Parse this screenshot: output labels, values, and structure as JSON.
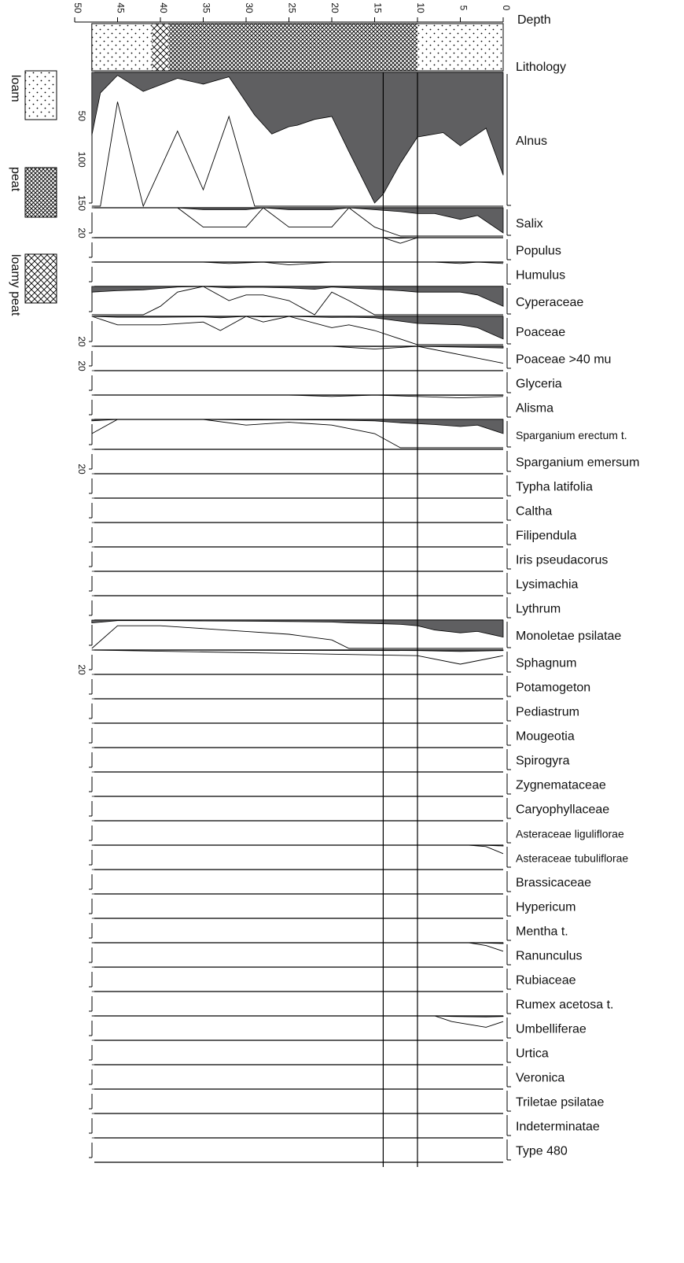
{
  "chart_data": {
    "type": "area",
    "x_axis": {
      "label": "Depth",
      "range": [
        0,
        50
      ],
      "ticks": [
        0,
        5,
        10,
        15,
        20,
        25,
        30,
        35,
        40,
        45,
        50
      ],
      "tick_labels": [
        "0",
        "5",
        "10",
        "15",
        "20",
        "25",
        "30",
        "35",
        "40",
        "45",
        "50"
      ]
    },
    "lithology": {
      "label": "Lithology",
      "units": [
        {
          "from": 0,
          "to": 10,
          "type": "loam"
        },
        {
          "from": 10,
          "to": 39,
          "type": "peat"
        },
        {
          "from": 39,
          "to": 41,
          "type": "loamy peat"
        },
        {
          "from": 41,
          "to": 48,
          "type": "loam"
        }
      ]
    },
    "legend": {
      "placement": "left",
      "items": [
        {
          "label": "loam",
          "pattern": "dots"
        },
        {
          "label": "peat",
          "pattern": "crosshatch-dense"
        },
        {
          "label": "loamy peat",
          "pattern": "crosshatch"
        }
      ]
    },
    "zone_boundaries": [
      10,
      14
    ],
    "exaggeration_factor": 10,
    "fill_color": "#5f5f61",
    "outline_color": "#000000",
    "panels": [
      {
        "name": "Alnus",
        "scale_labels": [
          "50",
          "100",
          "150"
        ],
        "depths": [
          0,
          2,
          5,
          7,
          10,
          12,
          14,
          15,
          18,
          20,
          22,
          24,
          25,
          27,
          29,
          32,
          35,
          38,
          42,
          45,
          47,
          48
        ],
        "values": [
          70,
          38,
          50,
          41,
          44,
          62,
          83,
          89,
          54,
          30,
          32,
          36,
          37,
          42,
          29,
          3,
          8,
          4,
          13,
          2,
          14,
          43
        ]
      },
      {
        "name": "Salix",
        "scale_labels": [
          "20"
        ],
        "depths": [
          0,
          3,
          5,
          8,
          10,
          12,
          15,
          18,
          20,
          22,
          25,
          28,
          30,
          32,
          35,
          38,
          41,
          43,
          45,
          48
        ],
        "values": [
          13,
          4,
          6,
          3,
          3,
          2,
          1,
          0,
          1,
          1,
          1,
          0,
          1,
          1,
          1,
          0,
          0,
          0,
          0,
          0
        ]
      },
      {
        "name": "Populus",
        "scale_labels": [],
        "depths": [
          0,
          10,
          12,
          14,
          48
        ],
        "values": [
          0,
          0,
          0.2,
          0,
          0
        ]
      },
      {
        "name": "Humulus",
        "scale_labels": [],
        "depths": [
          0,
          3,
          5,
          8,
          10,
          15,
          20,
          25,
          28,
          32,
          35,
          38,
          48
        ],
        "values": [
          0.05,
          0,
          0.05,
          0,
          0,
          0,
          0,
          0.1,
          0,
          0.05,
          0,
          0,
          0
        ]
      },
      {
        "name": "Cyperaceae",
        "scale_labels": [],
        "depths": [
          0,
          3,
          5,
          8,
          10,
          12,
          15,
          18,
          20,
          22,
          25,
          28,
          30,
          32,
          35,
          38,
          40,
          42,
          45,
          48
        ],
        "values": [
          7,
          3,
          2,
          2,
          2,
          1.5,
          1,
          0.5,
          0.2,
          1,
          0.5,
          0.3,
          0.3,
          0.5,
          0,
          0.2,
          0.7,
          1.2,
          1.5,
          2
        ]
      },
      {
        "name": "Poaceae",
        "scale_labels": [
          "20"
        ],
        "depths": [
          0,
          3,
          5,
          10,
          15,
          18,
          20,
          25,
          28,
          30,
          33,
          35,
          40,
          45,
          48
        ],
        "values": [
          8,
          4,
          3,
          2.5,
          0.5,
          0.3,
          0.4,
          0,
          0.2,
          0,
          0.5,
          0.2,
          0.3,
          0.3,
          0
        ]
      },
      {
        "name": "Poaceae >40 mu",
        "scale_labels": [
          "20"
        ],
        "depths": [
          0,
          10,
          15,
          20,
          48
        ],
        "values": [
          0.6,
          0,
          0.1,
          0,
          0
        ]
      },
      {
        "name": "Glyceria",
        "scale_labels": [],
        "depths": [
          0,
          10,
          48
        ],
        "values": [
          0,
          0,
          0
        ]
      },
      {
        "name": "Alisma",
        "scale_labels": [],
        "depths": [
          0,
          5,
          10,
          15,
          20,
          25,
          30,
          35,
          40,
          45,
          48
        ],
        "values": [
          0.05,
          0.1,
          0.05,
          0,
          0.05,
          0,
          0,
          0,
          0,
          0,
          0
        ]
      },
      {
        "name": "Sparganium erectum t.",
        "scale_labels": [],
        "depths": [
          0,
          3,
          5,
          8,
          10,
          12,
          15,
          20,
          25,
          30,
          35,
          40,
          45,
          48
        ],
        "values": [
          5,
          2,
          2.5,
          1.8,
          1.5,
          1.2,
          0.5,
          0.2,
          0.1,
          0.2,
          0,
          0,
          0,
          0.5
        ]
      },
      {
        "name": "Sparganium emersum",
        "scale_labels": [
          "20"
        ],
        "depths": [
          0,
          10,
          48
        ],
        "values": [
          0,
          0,
          0
        ]
      },
      {
        "name": "Typha latifolia",
        "scale_labels": [],
        "depths": [
          0,
          48
        ],
        "values": [
          0,
          0
        ]
      },
      {
        "name": "Caltha",
        "scale_labels": [],
        "depths": [
          0,
          48
        ],
        "values": [
          0,
          0
        ]
      },
      {
        "name": "Filipendula",
        "scale_labels": [],
        "depths": [
          0,
          48
        ],
        "values": [
          0,
          0
        ]
      },
      {
        "name": "Iris pseudacorus",
        "scale_labels": [],
        "depths": [
          0,
          48
        ],
        "values": [
          0,
          0
        ]
      },
      {
        "name": "Lysimachia",
        "scale_labels": [],
        "depths": [
          0,
          48
        ],
        "values": [
          0,
          0
        ]
      },
      {
        "name": "Lythrum",
        "scale_labels": [],
        "depths": [
          0,
          48
        ],
        "values": [
          0,
          0
        ]
      },
      {
        "name": "Monoletae psilatae",
        "scale_labels": [],
        "depths": [
          0,
          3,
          5,
          8,
          10,
          12,
          15,
          18,
          20,
          25,
          30,
          35,
          40,
          45,
          48
        ],
        "values": [
          6,
          4,
          4.5,
          3.5,
          2,
          1.5,
          1.2,
          1,
          0.7,
          0.5,
          0.4,
          0.3,
          0.2,
          0.2,
          1
        ]
      },
      {
        "name": "Sphagnum",
        "scale_labels": [
          "20"
        ],
        "depths": [
          0,
          5,
          10,
          48
        ],
        "values": [
          0.2,
          0.5,
          0.2,
          0
        ]
      },
      {
        "name": "Potamogeton",
        "scale_labels": [],
        "depths": [
          0,
          48
        ],
        "values": [
          0,
          0
        ]
      },
      {
        "name": "Pediastrum",
        "scale_labels": [],
        "depths": [
          0,
          48
        ],
        "values": [
          0,
          0
        ]
      },
      {
        "name": "Mougeotia",
        "scale_labels": [],
        "depths": [
          0,
          48
        ],
        "values": [
          0,
          0
        ]
      },
      {
        "name": "Spirogyra",
        "scale_labels": [],
        "depths": [
          0,
          48
        ],
        "values": [
          0,
          0
        ]
      },
      {
        "name": "Zygnemataceae",
        "scale_labels": [],
        "depths": [
          0,
          48
        ],
        "values": [
          0,
          0
        ]
      },
      {
        "name": "Caryophyllaceae",
        "scale_labels": [],
        "depths": [
          0,
          48
        ],
        "values": [
          0,
          0
        ]
      },
      {
        "name": "Asteraceae liguliflorae",
        "scale_labels": [],
        "depths": [
          0,
          48
        ],
        "values": [
          0,
          0
        ]
      },
      {
        "name": "Asteraceae tubuliflorae",
        "scale_labels": [],
        "depths": [
          0,
          2,
          4,
          48
        ],
        "values": [
          0.3,
          0.05,
          0,
          0
        ]
      },
      {
        "name": "Brassicaceae",
        "scale_labels": [],
        "depths": [
          0,
          48
        ],
        "values": [
          0,
          0
        ]
      },
      {
        "name": "Hypericum",
        "scale_labels": [],
        "depths": [
          0,
          48
        ],
        "values": [
          0,
          0
        ]
      },
      {
        "name": "Mentha t.",
        "scale_labels": [],
        "depths": [
          0,
          48
        ],
        "values": [
          0,
          0
        ]
      },
      {
        "name": "Ranunculus",
        "scale_labels": [],
        "depths": [
          0,
          2,
          4,
          48
        ],
        "values": [
          0.3,
          0.1,
          0,
          0
        ]
      },
      {
        "name": "Rubiaceae",
        "scale_labels": [],
        "depths": [
          0,
          48
        ],
        "values": [
          0,
          0
        ]
      },
      {
        "name": "Rumex acetosa t.",
        "scale_labels": [],
        "depths": [
          0,
          48
        ],
        "values": [
          0,
          0
        ]
      },
      {
        "name": "Umbelliferae",
        "scale_labels": [],
        "depths": [
          0,
          2,
          4,
          6,
          8,
          48
        ],
        "values": [
          0.2,
          0.4,
          0.3,
          0.2,
          0,
          0
        ]
      },
      {
        "name": "Urtica",
        "scale_labels": [],
        "depths": [
          0,
          48
        ],
        "values": [
          0,
          0
        ]
      },
      {
        "name": "Veronica",
        "scale_labels": [],
        "depths": [
          0,
          48
        ],
        "values": [
          0,
          0
        ]
      },
      {
        "name": "Triletae psilatae",
        "scale_labels": [],
        "depths": [
          0,
          48
        ],
        "values": [
          0,
          0
        ]
      },
      {
        "name": "Indeterminatae",
        "scale_labels": [],
        "depths": [
          0,
          48
        ],
        "values": [
          0,
          0
        ]
      },
      {
        "name": "Type 480",
        "scale_labels": [],
        "depths": [
          0,
          48
        ],
        "values": [
          0,
          0
        ]
      }
    ]
  }
}
